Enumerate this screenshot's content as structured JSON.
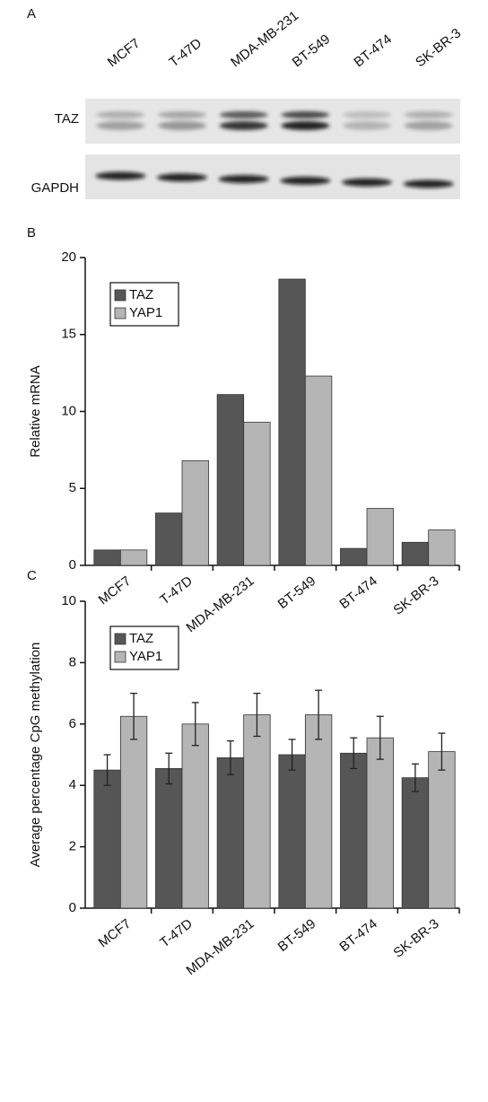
{
  "blot": {
    "label": "A",
    "lanes": [
      "MCF7",
      "T-47D",
      "MDA-MB-231",
      "BT-549",
      "BT-474",
      "SK-BR-3"
    ],
    "rows": [
      "TAZ",
      "GAPDH"
    ]
  },
  "chart_data": [
    {
      "type": "bar",
      "label": "B",
      "y_label": "Relative mRNA",
      "categories": [
        "MCF7",
        "T-47D",
        "MDA-MB-231",
        "BT-549",
        "BT-474",
        "SK-BR-3"
      ],
      "series": [
        {
          "name": "TAZ",
          "color": "#565656",
          "values": [
            1.0,
            3.4,
            11.1,
            18.6,
            1.1,
            1.5
          ]
        },
        {
          "name": "YAP1",
          "color": "#b5b5b5",
          "values": [
            1.0,
            6.8,
            9.3,
            12.3,
            3.7,
            2.3
          ]
        }
      ],
      "ylim": [
        0,
        20
      ],
      "yticks": [
        0,
        5,
        10,
        15,
        20
      ],
      "legend": "upper left"
    },
    {
      "type": "bar",
      "label": "C",
      "y_label": "Average percentage CpG methylation",
      "categories": [
        "MCF7",
        "T-47D",
        "MDA-MB-231",
        "BT-549",
        "BT-474",
        "SK-BR-3"
      ],
      "series": [
        {
          "name": "TAZ",
          "color": "#565656",
          "values": [
            4.5,
            4.55,
            4.9,
            5.0,
            5.05,
            4.25
          ],
          "errors": [
            0.5,
            0.5,
            0.55,
            0.5,
            0.5,
            0.45
          ]
        },
        {
          "name": "YAP1",
          "color": "#b5b5b5",
          "values": [
            6.25,
            6.0,
            6.3,
            6.3,
            5.55,
            5.1
          ],
          "errors": [
            0.75,
            0.7,
            0.7,
            0.8,
            0.7,
            0.6
          ]
        }
      ],
      "ylim": [
        0,
        10
      ],
      "yticks": [
        0,
        2,
        4,
        6,
        8,
        10
      ],
      "legend": "upper left"
    }
  ]
}
